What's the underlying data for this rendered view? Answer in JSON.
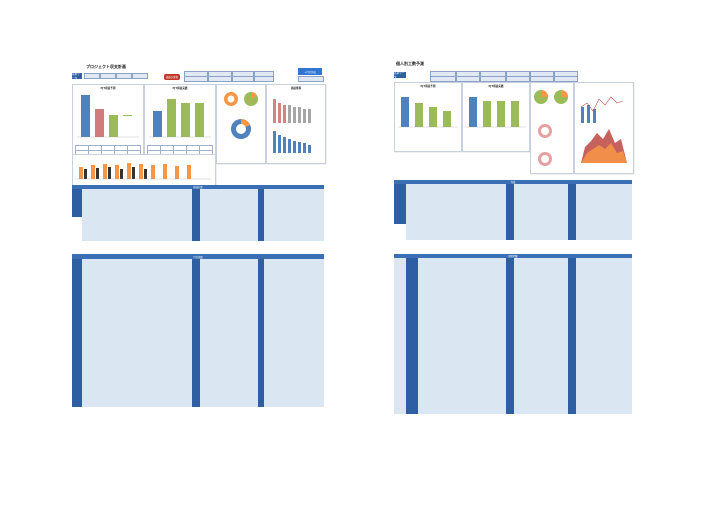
{
  "left_sheet": {
    "title": "プロジェクト収支計画",
    "tab_label": "基本データ",
    "tag_button": "損益計算書",
    "right_button": "+月次作成",
    "chart1_title": "PJT損益予測",
    "chart2_title": "PJT損益実績",
    "chart3_title": "予実比較(損益)",
    "chart4_title": "損益推移",
    "section_top": "損益計算",
    "section_bottom": "月次詳細"
  },
  "right_sheet": {
    "title": "個人別工数予測",
    "tab_label": "基本データ",
    "chart1_title": "PJT損益予測",
    "chart2_title": "PJT損益実績",
    "section_top": "作業",
    "section_bottom": "個別明細"
  },
  "colors": {
    "header_blue": "#2e5fa3",
    "bar_blue": "#4f81bd",
    "bar_green": "#9bbb59",
    "bar_orange": "#f79646",
    "bar_red": "#c0504d",
    "grid_light": "#dbe6f3"
  },
  "chart_data": [
    {
      "type": "bar",
      "title": "PJT損益予測",
      "categories": [
        "売上高",
        "売上原価",
        "売上総利益",
        "販売管理費",
        "営業利益"
      ],
      "values": [
        8,
        -5,
        -3,
        0,
        3
      ]
    },
    {
      "type": "bar",
      "title": "PJT損益実績",
      "categories": [
        "売上高",
        "売上原価",
        "売上総利益",
        "販売管理費",
        "営業利益"
      ],
      "values": [
        4,
        8,
        7,
        7,
        6
      ]
    }
  ]
}
